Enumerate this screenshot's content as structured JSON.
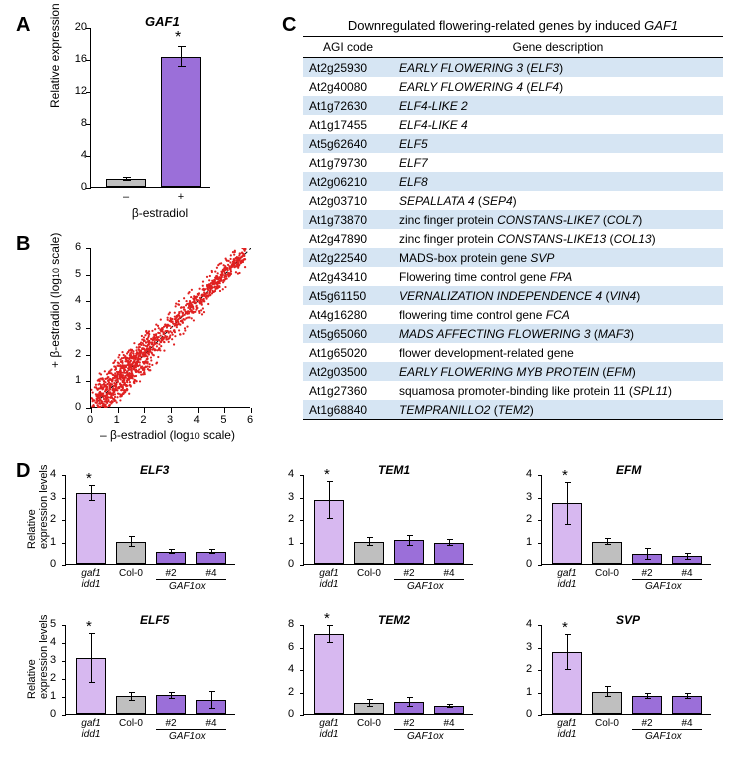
{
  "panelLabels": {
    "A": "A",
    "B": "B",
    "C": "C",
    "D": "D"
  },
  "panelA": {
    "title": "GAF1",
    "ylabelA": "Relative expression levels",
    "xlabelA": "β-estradiol",
    "ymax": 20,
    "yticks": [
      0,
      4,
      8,
      12,
      16,
      20
    ],
    "bars": [
      {
        "label": "–",
        "value": 1.0,
        "err": 0.2,
        "color": "#bfbfbf",
        "sig": false
      },
      {
        "label": "+",
        "value": 16.3,
        "err": 1.3,
        "color": "#9b6fd9",
        "sig": true
      }
    ]
  },
  "panelB": {
    "ylabelB": "+ β-estradiol (log",
    "ylabelBsub": "10",
    "ylabelBend": " scale)",
    "xlabelB": "– β-estradiol (log",
    "xlabelBsub": "10",
    "xlabelBend": " scale)",
    "ticks": [
      0,
      1,
      2,
      3,
      4,
      5,
      6
    ],
    "point_color": "#e02020"
  },
  "panelC": {
    "title": "Downregulated flowering-related genes by induced ",
    "titleItalic": "GAF1",
    "cols": [
      "AGI code",
      "Gene description"
    ],
    "rows": [
      {
        "agi": "At2g25930",
        "desc": "EARLY FLOWERING 3",
        "descN": "(",
        "descN2": "ELF3",
        "descN3": ")",
        "ital": true
      },
      {
        "agi": "At2g40080",
        "desc": "EARLY FLOWERING 4",
        "descN": "(",
        "descN2": "ELF4",
        "descN3": ")",
        "ital": true
      },
      {
        "agi": "At1g72630",
        "desc": "ELF4-LIKE 2",
        "ital": true
      },
      {
        "agi": "At1g17455",
        "desc": "ELF4-LIKE 4",
        "ital": true
      },
      {
        "agi": "At5g62640",
        "desc": "ELF5",
        "ital": true
      },
      {
        "agi": "At1g79730",
        "desc": "ELF7",
        "ital": true
      },
      {
        "agi": "At2g06210",
        "desc": "ELF8",
        "ital": true
      },
      {
        "agi": "At2g03710",
        "desc": "SEPALLATA 4",
        "descN": "(",
        "descN2": "SEP4",
        "descN3": ")",
        "ital": true
      },
      {
        "agi": "At1g73870",
        "desc": "zinc finger protein ",
        "descI": "CONSTANS-LIKE7",
        "descN": "(",
        "descN2": "COL7",
        "descN3": ")",
        "mix": true
      },
      {
        "agi": "At2g47890",
        "desc": "zinc finger protein ",
        "descI": "CONSTANS-LIKE13",
        "descN": "(",
        "descN2": "COL13",
        "descN3": ")",
        "mix": true
      },
      {
        "agi": "At2g22540",
        "desc": "MADS-box protein gene ",
        "descI": "SVP",
        "mix": true
      },
      {
        "agi": "At2g43410",
        "desc": "Flowering time control gene ",
        "descI": "FPA",
        "mix": true
      },
      {
        "agi": "At5g61150",
        "desc": "VERNALIZATION INDEPENDENCE 4",
        "descN": "(",
        "descN2": "VIN4",
        "descN3": ")",
        "ital": true
      },
      {
        "agi": "At4g16280",
        "desc": "flowering time control gene ",
        "descI": "FCA",
        "mix": true
      },
      {
        "agi": "At5g65060",
        "desc": "MADS AFFECTING FLOWERING 3",
        "descN": "(",
        "descN2": "MAF3",
        "descN3": ")",
        "ital": true
      },
      {
        "agi": "At1g65020",
        "desc": "flower development-related gene",
        "plain": true
      },
      {
        "agi": "At2g03500",
        "desc": "EARLY FLOWERING MYB PROTEIN",
        "descN": "(",
        "descN2": "EFM",
        "descN3": ")",
        "ital": true
      },
      {
        "agi": "At1g27360",
        "desc": "squamosa promoter-binding like protein 11 (",
        "descI": "SPL11",
        "descN3": ")",
        "mix": true
      },
      {
        "agi": "At1g68840",
        "desc": "TEMPRANILLO2",
        "descN": "(",
        "descN2": "TEM2",
        "descN3": ")",
        "ital": true
      }
    ]
  },
  "panelD": {
    "ylabel": "Relative\nexpression levels",
    "xlabels_g": [
      "gaf1\nidd1",
      "Col-0",
      "#2",
      "#4"
    ],
    "gaf1ox": "GAF1ox",
    "colors": {
      "mut": "#d7b8f0",
      "wt": "#bfbfbf",
      "ox": "#9b6fd9"
    },
    "charts": [
      {
        "title": "ELF3",
        "ymax": 4,
        "yticks": [
          0,
          1,
          2,
          3,
          4
        ],
        "bars": [
          {
            "v": 3.15,
            "e": 0.35,
            "c": "mut",
            "sig": true
          },
          {
            "v": 1.0,
            "e": 0.25,
            "c": "wt"
          },
          {
            "v": 0.55,
            "e": 0.1,
            "c": "ox"
          },
          {
            "v": 0.55,
            "e": 0.1,
            "c": "ox"
          }
        ]
      },
      {
        "title": "TEM1",
        "ymax": 4,
        "yticks": [
          0,
          1,
          2,
          3,
          4
        ],
        "bars": [
          {
            "v": 2.85,
            "e": 0.85,
            "c": "mut",
            "sig": true
          },
          {
            "v": 1.0,
            "e": 0.2,
            "c": "wt"
          },
          {
            "v": 1.05,
            "e": 0.25,
            "c": "ox"
          },
          {
            "v": 0.95,
            "e": 0.15,
            "c": "ox"
          }
        ]
      },
      {
        "title": "EFM",
        "ymax": 4,
        "yticks": [
          0,
          1,
          2,
          3,
          4
        ],
        "bars": [
          {
            "v": 2.7,
            "e": 0.95,
            "c": "mut",
            "sig": true
          },
          {
            "v": 1.0,
            "e": 0.15,
            "c": "wt"
          },
          {
            "v": 0.45,
            "e": 0.25,
            "c": "ox"
          },
          {
            "v": 0.35,
            "e": 0.15,
            "c": "ox"
          }
        ]
      },
      {
        "title": "ELF5",
        "ymax": 5,
        "yticks": [
          0,
          1,
          2,
          3,
          4,
          5
        ],
        "bars": [
          {
            "v": 3.1,
            "e": 1.4,
            "c": "mut",
            "sig": true
          },
          {
            "v": 1.0,
            "e": 0.25,
            "c": "wt"
          },
          {
            "v": 1.05,
            "e": 0.2,
            "c": "ox"
          },
          {
            "v": 0.8,
            "e": 0.5,
            "c": "ox"
          }
        ]
      },
      {
        "title": "TEM2",
        "ymax": 8,
        "yticks": [
          0,
          2,
          4,
          6,
          8
        ],
        "bars": [
          {
            "v": 7.1,
            "e": 0.8,
            "c": "mut",
            "sig": true
          },
          {
            "v": 1.0,
            "e": 0.35,
            "c": "wt"
          },
          {
            "v": 1.05,
            "e": 0.45,
            "c": "ox"
          },
          {
            "v": 0.7,
            "e": 0.15,
            "c": "ox"
          }
        ]
      },
      {
        "title": "SVP",
        "ymax": 4,
        "yticks": [
          0,
          1,
          2,
          3,
          4
        ],
        "bars": [
          {
            "v": 2.75,
            "e": 0.8,
            "c": "mut",
            "sig": true
          },
          {
            "v": 1.0,
            "e": 0.25,
            "c": "wt"
          },
          {
            "v": 0.8,
            "e": 0.15,
            "c": "ox"
          },
          {
            "v": 0.8,
            "e": 0.15,
            "c": "ox"
          }
        ]
      }
    ]
  }
}
